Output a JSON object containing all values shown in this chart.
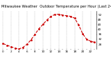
{
  "title": "Milwaukee Weather  Outdoor Temperature per Hour (Last 24 Hours)",
  "hours": [
    0,
    1,
    2,
    3,
    4,
    5,
    6,
    7,
    8,
    9,
    10,
    11,
    12,
    13,
    14,
    15,
    16,
    17,
    18,
    19,
    20,
    21,
    22,
    23
  ],
  "temps": [
    28.5,
    27.2,
    26.0,
    24.8,
    24.2,
    25.5,
    28.0,
    31.5,
    36.0,
    40.5,
    44.0,
    47.5,
    50.5,
    52.0,
    52.2,
    51.5,
    51.0,
    50.5,
    49.0,
    43.5,
    36.5,
    32.0,
    30.5,
    29.5
  ],
  "line_color": "#cc0000",
  "marker": "o",
  "marker_size": 1.0,
  "line_width": 0.8,
  "line_style": "--",
  "bg_color": "#ffffff",
  "grid_color": "#999999",
  "title_fontsize": 3.8,
  "tick_fontsize": 3.0,
  "ytick_labels": [
    "52",
    "48",
    "44",
    "40",
    "36",
    "32",
    "28"
  ],
  "yticks": [
    52,
    48,
    44,
    40,
    36,
    32,
    28
  ],
  "ylim": [
    24,
    55
  ],
  "xlim": [
    -0.5,
    23.5
  ],
  "xtick_step": 2
}
